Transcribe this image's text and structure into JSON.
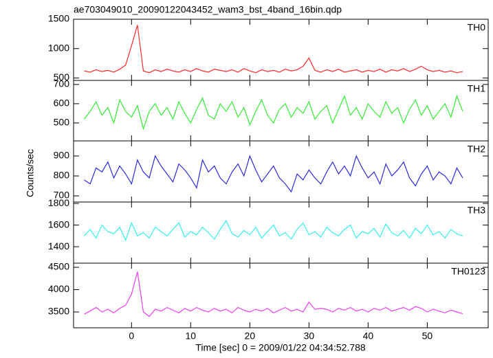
{
  "chart_data": [
    {
      "type": "line",
      "title": "ae703049010_20090122043452_wam3_bst_4band_16bin.qdp",
      "label": "TH0",
      "color": "#ff2a2a",
      "x": [
        -8,
        -7,
        -6,
        -5,
        -4,
        -3,
        -2,
        -1,
        0,
        1,
        2,
        3,
        4,
        5,
        6,
        7,
        8,
        9,
        10,
        11,
        12,
        13,
        14,
        15,
        16,
        17,
        18,
        19,
        20,
        21,
        22,
        23,
        24,
        25,
        26,
        27,
        28,
        29,
        30,
        31,
        32,
        33,
        34,
        35,
        36,
        37,
        38,
        39,
        40,
        41,
        42,
        43,
        44,
        45,
        46,
        47,
        48,
        49,
        50,
        51,
        52,
        53,
        54,
        55,
        56
      ],
      "values": [
        620,
        600,
        640,
        610,
        630,
        600,
        650,
        720,
        1050,
        1400,
        620,
        590,
        640,
        610,
        650,
        620,
        600,
        640,
        610,
        660,
        620,
        600,
        650,
        630,
        610,
        640,
        600,
        660,
        620,
        590,
        640,
        610,
        630,
        600,
        650,
        620,
        640,
        700,
        840,
        630,
        600,
        640,
        610,
        650,
        600,
        620,
        640,
        600,
        630,
        610,
        650,
        600,
        640,
        620,
        660,
        610,
        650,
        700,
        640,
        610,
        630,
        600,
        620,
        590,
        610
      ],
      "xlim": [
        -9.8,
        60.3
      ],
      "xticks": [
        0,
        10,
        20,
        30,
        40,
        50
      ],
      "ylim": [
        459,
        1500
      ],
      "yticks": [
        500,
        1000,
        1500
      ]
    },
    {
      "type": "line",
      "label": "TH1",
      "color": "#33ee33",
      "x": [
        -8,
        -7,
        -6,
        -5,
        -4,
        -3,
        -2,
        -1,
        0,
        1,
        2,
        3,
        4,
        5,
        6,
        7,
        8,
        9,
        10,
        11,
        12,
        13,
        14,
        15,
        16,
        17,
        18,
        19,
        20,
        21,
        22,
        23,
        24,
        25,
        26,
        27,
        28,
        29,
        30,
        31,
        32,
        33,
        34,
        35,
        36,
        37,
        38,
        39,
        40,
        41,
        42,
        43,
        44,
        45,
        46,
        47,
        48,
        49,
        50,
        51,
        52,
        53,
        54,
        55,
        56
      ],
      "values": [
        520,
        560,
        610,
        540,
        580,
        500,
        620,
        560,
        530,
        590,
        470,
        560,
        600,
        540,
        580,
        520,
        610,
        550,
        500,
        570,
        630,
        540,
        520,
        600,
        560,
        610,
        530,
        580,
        490,
        560,
        620,
        540,
        500,
        570,
        600,
        530,
        580,
        550,
        610,
        520,
        560,
        590,
        500,
        570,
        640,
        540,
        580,
        520,
        600,
        560,
        530,
        610,
        550,
        580,
        500,
        570,
        620,
        540,
        590,
        520,
        560,
        600,
        530,
        640,
        560
      ],
      "xlim": [
        -9.8,
        60.3
      ],
      "xticks": [
        0,
        10,
        20,
        30,
        40,
        50
      ],
      "ylim": [
        407,
        721
      ],
      "yticks": [
        500,
        600,
        700
      ]
    },
    {
      "type": "line",
      "label": "TH2",
      "ylabel": "Counts/sec",
      "color": "#2a2ae0",
      "x": [
        -8,
        -7,
        -6,
        -5,
        -4,
        -3,
        -2,
        -1,
        0,
        1,
        2,
        3,
        4,
        5,
        6,
        7,
        8,
        9,
        10,
        11,
        12,
        13,
        14,
        15,
        16,
        17,
        18,
        19,
        20,
        21,
        22,
        23,
        24,
        25,
        26,
        27,
        28,
        29,
        30,
        31,
        32,
        33,
        34,
        35,
        36,
        37,
        38,
        39,
        40,
        41,
        42,
        43,
        44,
        45,
        46,
        47,
        48,
        49,
        50,
        51,
        52,
        53,
        54,
        55,
        56
      ],
      "values": [
        780,
        760,
        840,
        820,
        870,
        790,
        850,
        810,
        760,
        880,
        820,
        790,
        900,
        850,
        810,
        770,
        860,
        830,
        790,
        740,
        880,
        820,
        850,
        790,
        760,
        820,
        860,
        800,
        900,
        830,
        770,
        810,
        850,
        790,
        760,
        720,
        810,
        780,
        830,
        790,
        760,
        820,
        870,
        810,
        850,
        800,
        900,
        840,
        790,
        820,
        760,
        860,
        800,
        830,
        870,
        790,
        750,
        810,
        850,
        780,
        820,
        800,
        760,
        840,
        790
      ],
      "xlim": [
        -9.8,
        60.3
      ],
      "xticks": [
        0,
        10,
        20,
        30,
        40,
        50
      ],
      "ylim": [
        669,
        976
      ],
      "yticks": [
        700,
        800,
        900
      ]
    },
    {
      "type": "line",
      "label": "TH3",
      "color": "#33f0f0",
      "x": [
        -8,
        -7,
        -6,
        -5,
        -4,
        -3,
        -2,
        -1,
        0,
        1,
        2,
        3,
        4,
        5,
        6,
        7,
        8,
        9,
        10,
        11,
        12,
        13,
        14,
        15,
        16,
        17,
        18,
        19,
        20,
        21,
        22,
        23,
        24,
        25,
        26,
        27,
        28,
        29,
        30,
        31,
        32,
        33,
        34,
        35,
        36,
        37,
        38,
        39,
        40,
        41,
        42,
        43,
        44,
        45,
        46,
        47,
        48,
        49,
        50,
        51,
        52,
        53,
        54,
        55,
        56
      ],
      "values": [
        1500,
        1560,
        1480,
        1600,
        1540,
        1520,
        1580,
        1460,
        1620,
        1500,
        1530,
        1480,
        1580,
        1540,
        1500,
        1560,
        1620,
        1490,
        1540,
        1510,
        1580,
        1530,
        1470,
        1560,
        1640,
        1520,
        1490,
        1550,
        1510,
        1580,
        1480,
        1540,
        1600,
        1500,
        1530,
        1470,
        1560,
        1620,
        1510,
        1540,
        1490,
        1580,
        1530,
        1500,
        1560,
        1600,
        1480,
        1540,
        1520,
        1570,
        1490,
        1610,
        1530,
        1500,
        1550,
        1480,
        1570,
        1520,
        1600,
        1510,
        1540,
        1480,
        1560,
        1520,
        1500
      ],
      "xlim": [
        -9.8,
        60.3
      ],
      "xticks": [
        0,
        10,
        20,
        30,
        40,
        50
      ],
      "ylim": [
        1248,
        1813
      ],
      "yticks": [
        1400,
        1600,
        1800
      ]
    },
    {
      "type": "line",
      "label": "TH0123",
      "xlabel": "Time [sec] 0 = 2009/01/22 04:34:52.788",
      "color": "#f03cf0",
      "x": [
        -8,
        -7,
        -6,
        -5,
        -4,
        -3,
        -2,
        -1,
        0,
        1,
        2,
        3,
        4,
        5,
        6,
        7,
        8,
        9,
        10,
        11,
        12,
        13,
        14,
        15,
        16,
        17,
        18,
        19,
        20,
        21,
        22,
        23,
        24,
        25,
        26,
        27,
        28,
        29,
        30,
        31,
        32,
        33,
        34,
        35,
        36,
        37,
        38,
        39,
        40,
        41,
        42,
        43,
        44,
        45,
        46,
        47,
        48,
        49,
        50,
        51,
        52,
        53,
        54,
        55,
        56
      ],
      "values": [
        3450,
        3520,
        3600,
        3500,
        3560,
        3480,
        3580,
        3650,
        3900,
        4400,
        3500,
        3400,
        3560,
        3520,
        3600,
        3540,
        3480,
        3580,
        3520,
        3600,
        3540,
        3500,
        3580,
        3520,
        3560,
        3480,
        3600,
        3540,
        3500,
        3560,
        3520,
        3580,
        3480,
        3540,
        3600,
        3520,
        3560,
        3500,
        3720,
        3560,
        3580,
        3560,
        3500,
        3580,
        3540,
        3600,
        3520,
        3560,
        3500,
        3580,
        3540,
        3600,
        3520,
        3560,
        3600,
        3540,
        3620,
        3580,
        3500,
        3560,
        3520,
        3480,
        3540,
        3500,
        3460
      ],
      "xlim": [
        -9.8,
        60.3
      ],
      "xticks": [
        0,
        10,
        20,
        30,
        40,
        50
      ],
      "ylim": [
        3146,
        4592
      ],
      "yticks": [
        3500,
        4000,
        4500
      ]
    }
  ]
}
